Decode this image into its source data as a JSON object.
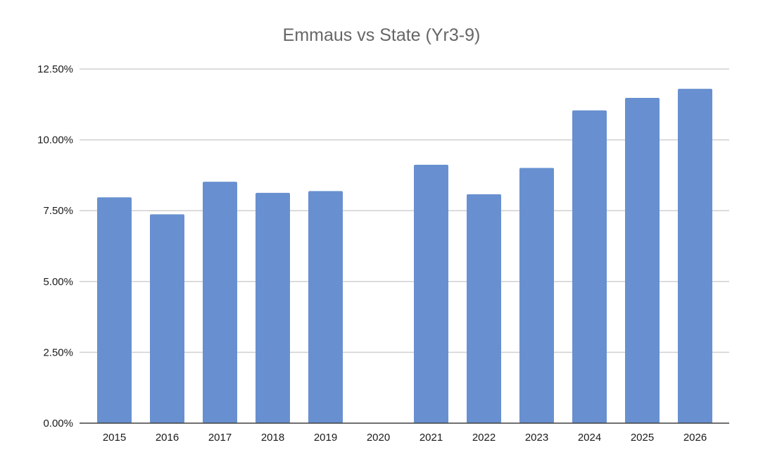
{
  "chart_data": {
    "type": "bar",
    "title": "Emmaus vs State (Yr3-9)",
    "xlabel": "",
    "ylabel": "",
    "categories": [
      "2015",
      "2016",
      "2017",
      "2018",
      "2019",
      "2020",
      "2021",
      "2022",
      "2023",
      "2024",
      "2025",
      "2026"
    ],
    "values": [
      7.97,
      7.37,
      8.52,
      8.13,
      8.19,
      0,
      9.12,
      8.08,
      9.01,
      11.04,
      11.48,
      11.8
    ],
    "ylim": [
      0,
      12.5
    ],
    "yticks": [
      0,
      2.5,
      5,
      7.5,
      10,
      12.5
    ],
    "ytick_labels": [
      "0.00%",
      "2.50%",
      "5.00%",
      "7.50%",
      "10.00%",
      "12.50%"
    ],
    "grid": true,
    "legend": "none",
    "bar_color": "#6890d0",
    "gridline_color": "#d0d0d0",
    "axis_color": "#404040",
    "title_color": "#666666",
    "label_color": "#1a1a1a"
  }
}
